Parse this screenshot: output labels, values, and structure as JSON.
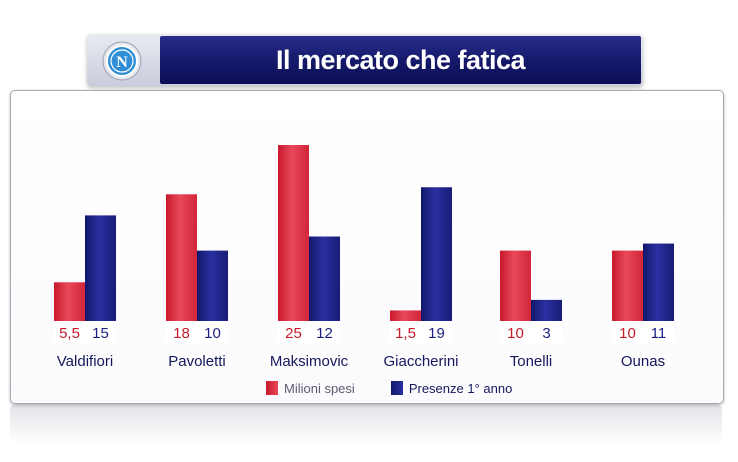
{
  "header": {
    "title": "Il mercato che fatica",
    "logo_letter": "N"
  },
  "legend": {
    "placement": "bottom-center",
    "items": [
      {
        "label": "Milioni spesi",
        "color": "#d8263c"
      },
      {
        "label": "Presenze 1° anno",
        "color": "#1a1f80"
      }
    ]
  },
  "chart_data": {
    "type": "bar",
    "title": "Il mercato che fatica",
    "categories": [
      "Valdifiori",
      "Pavoletti",
      "Maksimovic",
      "Giaccherini",
      "Tonelli",
      "Ounas"
    ],
    "series": [
      {
        "name": "Milioni spesi",
        "values": [
          5.5,
          18,
          25,
          1.5,
          10,
          10
        ],
        "labels": [
          "5,5",
          "18",
          "25",
          "1,5",
          "10",
          "10"
        ],
        "color": "#d8263c"
      },
      {
        "name": "Presenze 1° anno",
        "values": [
          15,
          10,
          12,
          19,
          3,
          11
        ],
        "labels": [
          "15",
          "10",
          "12",
          "19",
          "3",
          "11"
        ],
        "color": "#1a1f80"
      }
    ],
    "grid": false,
    "ylim": [
      0,
      25
    ]
  },
  "colors": {
    "title_bar": "#141868",
    "value_red_text": "#c41a2a",
    "value_blue_text": "#1a1f80",
    "category_text": "#15185c"
  }
}
